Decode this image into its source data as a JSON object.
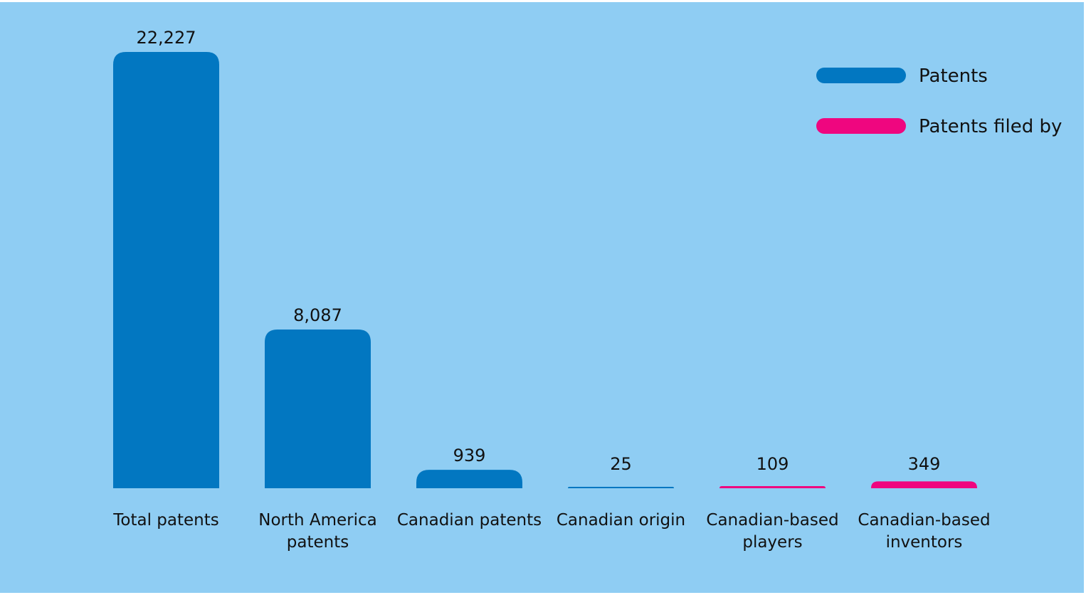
{
  "chart_data": {
    "type": "bar",
    "title": "",
    "xlabel": "",
    "ylabel": "",
    "ylim": [
      0,
      22227
    ],
    "grid": false,
    "legend_placement": "top-right",
    "categories": [
      "Total patents",
      "North America patents",
      "Canadian patents",
      "Canadian origin",
      "Canadian-based players",
      "Canadian-based inventors"
    ],
    "category_lines": [
      [
        "Total patents"
      ],
      [
        "North America",
        "patents"
      ],
      [
        "Canadian patents"
      ],
      [
        "Canadian origin"
      ],
      [
        "Canadian-based",
        "players"
      ],
      [
        "Canadian-based",
        "inventors"
      ]
    ],
    "values": [
      22227,
      8087,
      939,
      25,
      109,
      349
    ],
    "value_labels": [
      "22,227",
      "8,087",
      "939",
      "25",
      "109",
      "349"
    ],
    "groups": [
      0,
      0,
      0,
      0,
      1,
      1
    ],
    "series": [
      {
        "name": "Patents",
        "color": "#0277c1"
      },
      {
        "name": "Patents filed by",
        "color": "#ef067f"
      }
    ]
  }
}
